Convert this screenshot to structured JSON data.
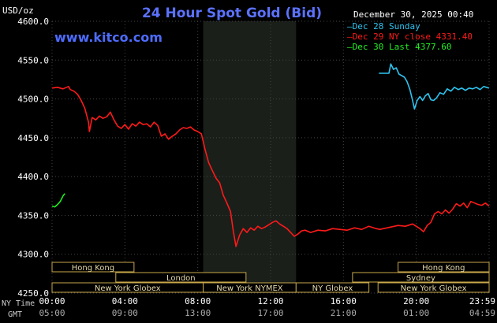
{
  "header": {
    "title": "24 Hour Spot Gold (Bid)",
    "ylabel": "USD/oz",
    "brand": "www.kitco.com",
    "datetime": "December 30, 2025 00:40"
  },
  "colors": {
    "background": "#000000",
    "plot": "#000000",
    "shade": "#1a1f1a",
    "grid": "#444444",
    "title": "#5b72ff",
    "brand": "#4d6cff",
    "text": "#ffffff",
    "series_dec28": "#2ec4f0",
    "series_dec29": "#ff1a1a",
    "series_dec30": "#22ee22",
    "session_fill": "#000000",
    "session_border": "#c9a84a",
    "session_text": "#e6d8a8"
  },
  "chart_data": {
    "type": "line",
    "title": "24 Hour Spot Gold (Bid)",
    "ylabel": "USD/oz",
    "ylim": [
      4250,
      4600
    ],
    "yticks": [
      "4600.0",
      "4550.0",
      "4500.0",
      "4450.0",
      "4400.0",
      "4350.0",
      "4300.0",
      "4250.0"
    ],
    "xlim": [
      0,
      24
    ],
    "xticks_ny": [
      "00:00",
      "04:00",
      "08:00",
      "12:00",
      "16:00",
      "20:00",
      "23:59"
    ],
    "xticks_gmt": [
      "05:00",
      "09:00",
      "13:00",
      "17:00",
      "21:00",
      "01:00",
      "04:59"
    ],
    "xrow_labels": [
      "NY Time",
      "GMT"
    ],
    "grid": true,
    "shaded_hours": [
      8.3,
      13.4
    ],
    "legend": [
      {
        "name": "Dec 28 Sunday",
        "color": "#2ec4f0"
      },
      {
        "name": "Dec 29 NY close 4331.40",
        "color": "#ff1a1a"
      },
      {
        "name": "Dec 30 Last 4377.60",
        "color": "#22ee22"
      }
    ],
    "series": [
      {
        "name": "Dec 28 Sunday",
        "color": "#2ec4f0",
        "x": [
          17.95,
          18.2,
          18.5,
          18.6,
          18.75,
          18.9,
          19.05,
          19.2,
          19.35,
          19.5,
          19.65,
          19.8,
          19.9,
          20.05,
          20.2,
          20.35,
          20.5,
          20.65,
          20.8,
          20.95,
          21.1,
          21.3,
          21.5,
          21.7,
          21.9,
          22.1,
          22.3,
          22.5,
          22.7,
          22.9,
          23.1,
          23.3,
          23.5,
          23.7,
          23.99
        ],
        "values": [
          4533,
          4533,
          4533,
          4545,
          4538,
          4540,
          4532,
          4530,
          4528,
          4522,
          4512,
          4498,
          4487,
          4498,
          4503,
          4498,
          4504,
          4507,
          4499,
          4498,
          4501,
          4508,
          4506,
          4513,
          4510,
          4515,
          4512,
          4514,
          4511,
          4514,
          4513,
          4515,
          4512,
          4516,
          4514
        ]
      },
      {
        "name": "Dec 29 NY close 4331.40",
        "color": "#ff1a1a",
        "x": [
          0,
          0.3,
          0.6,
          0.9,
          1.0,
          1.2,
          1.4,
          1.6,
          1.8,
          2.0,
          2.05,
          2.2,
          2.4,
          2.6,
          2.8,
          3.0,
          3.2,
          3.4,
          3.6,
          3.8,
          4.0,
          4.2,
          4.4,
          4.6,
          4.8,
          5.0,
          5.2,
          5.4,
          5.6,
          5.8,
          6.0,
          6.2,
          6.4,
          6.6,
          6.8,
          7.0,
          7.2,
          7.4,
          7.6,
          7.8,
          8.0,
          8.2,
          8.4,
          8.6,
          8.8,
          9.0,
          9.2,
          9.4,
          9.6,
          9.8,
          9.95,
          10.1,
          10.3,
          10.5,
          10.7,
          10.9,
          11.1,
          11.3,
          11.5,
          11.7,
          11.9,
          12.1,
          12.3,
          12.5,
          12.7,
          12.9,
          13.1,
          13.3,
          13.5,
          13.7,
          13.9,
          14.2,
          14.6,
          15.0,
          15.4,
          15.8,
          16.2,
          16.6,
          17.0,
          17.4,
          17.8,
          18.0,
          18.2,
          18.6,
          19.0,
          19.4,
          19.8,
          20.2,
          20.4,
          20.6,
          20.8,
          21.0,
          21.2,
          21.4,
          21.6,
          21.8,
          22.0,
          22.2,
          22.4,
          22.6,
          22.8,
          23.0,
          23.2,
          23.4,
          23.6,
          23.8,
          23.99
        ],
        "values": [
          4514,
          4515,
          4513,
          4516,
          4512,
          4510,
          4506,
          4498,
          4488,
          4470,
          4458,
          4476,
          4473,
          4478,
          4475,
          4477,
          4483,
          4473,
          4465,
          4462,
          4467,
          4461,
          4468,
          4465,
          4470,
          4467,
          4468,
          4464,
          4470,
          4466,
          4452,
          4455,
          4448,
          4452,
          4455,
          4460,
          4463,
          4462,
          4464,
          4460,
          4458,
          4455,
          4435,
          4418,
          4408,
          4398,
          4392,
          4376,
          4366,
          4355,
          4330,
          4310,
          4325,
          4333,
          4328,
          4334,
          4331,
          4336,
          4333,
          4335,
          4338,
          4341,
          4343,
          4339,
          4336,
          4333,
          4328,
          4323,
          4326,
          4330,
          4331,
          4328,
          4331,
          4330,
          4333,
          4332,
          4331,
          4334,
          4332,
          4336,
          4333,
          4332,
          4333,
          4335,
          4337,
          4336,
          4339,
          4333,
          4329,
          4337,
          4341,
          4352,
          4355,
          4352,
          4357,
          4353,
          4358,
          4365,
          4362,
          4366,
          4360,
          4368,
          4366,
          4364,
          4363,
          4366,
          4362
        ]
      },
      {
        "name": "Dec 30 Last 4377.60",
        "color": "#22ee22",
        "x": [
          0,
          0.15,
          0.3,
          0.45,
          0.6,
          0.7
        ],
        "values": [
          4362,
          4361,
          4364,
          4368,
          4375,
          4378
        ]
      }
    ],
    "sessions": [
      {
        "label": "Hong Kong",
        "row": 1,
        "start": 0,
        "end": 4.5
      },
      {
        "label": "Hong Kong",
        "row": 1,
        "start": 19.0,
        "end": 24
      },
      {
        "label": "London",
        "row": 2,
        "start": 3.5,
        "end": 10.65
      },
      {
        "label": "Sydney",
        "row": 2,
        "start": 16.5,
        "end": 24
      },
      {
        "label": "New York Globex",
        "row": 3,
        "start": 0,
        "end": 8.3
      },
      {
        "label": "New York NYMEX",
        "row": 3,
        "start": 8.3,
        "end": 13.4
      },
      {
        "label": "NY Globex",
        "row": 3,
        "start": 13.4,
        "end": 17.4
      },
      {
        "label": "New York Globex",
        "row": 3,
        "start": 17.9,
        "end": 24
      }
    ]
  }
}
